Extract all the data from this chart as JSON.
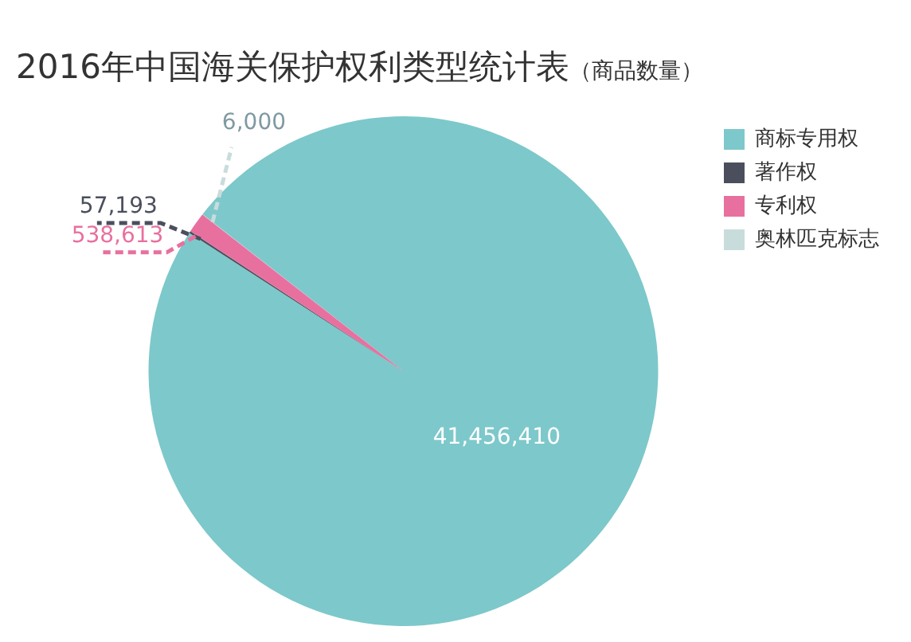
{
  "chart_data": {
    "type": "pie",
    "title": "2016年中国海关保护权利类型统计表",
    "subtitle": "（商品数量）",
    "categories": [
      "商标专用权",
      "著作权",
      "专利权",
      "奥林匹克标志"
    ],
    "values": [
      41456410,
      57193,
      538613,
      6000
    ],
    "value_labels": [
      "41,456,410",
      "57,193",
      "538,613",
      "6,000"
    ],
    "colors": [
      "#7dc8cb",
      "#4b4f5d",
      "#e8709f",
      "#c8dcdb"
    ],
    "legend": "right"
  }
}
